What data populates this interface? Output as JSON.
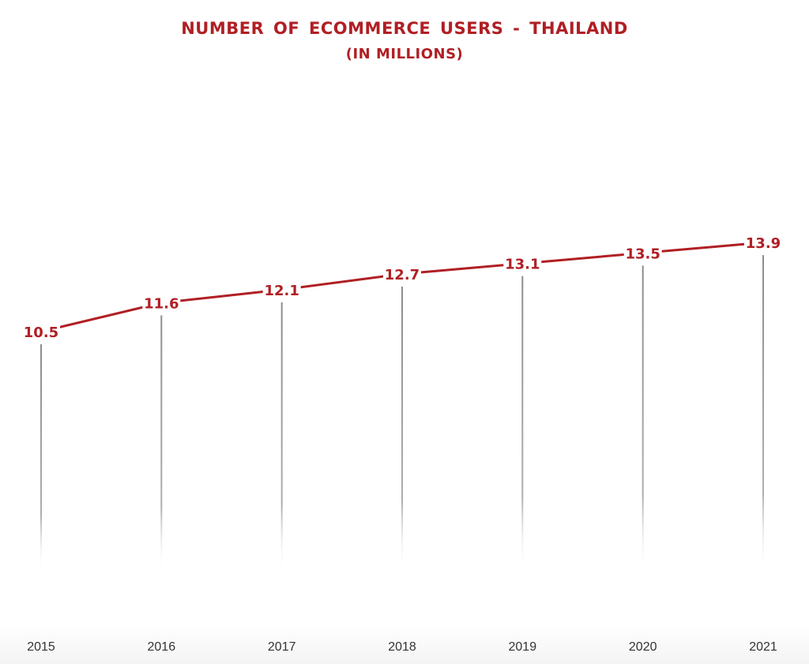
{
  "chart_data": {
    "type": "line",
    "title": "NUMBER  OF ECOMMERCE  USERS - THAILAND",
    "subtitle": "(IN MILLIONS)",
    "categories": [
      "2015",
      "2016",
      "2017",
      "2018",
      "2019",
      "2020",
      "2021"
    ],
    "values": [
      10.5,
      11.6,
      12.1,
      12.7,
      13.1,
      13.5,
      13.9
    ],
    "value_labels": [
      "10.5",
      "11.6",
      "12.1",
      "12.7",
      "13.1",
      "13.5",
      "13.9"
    ],
    "xlabel": "",
    "ylabel": "",
    "grid": false,
    "legend": "none",
    "colors": {
      "line": "#b01f24",
      "labels": "#b01f24",
      "drop_lines": "#8c8c8c",
      "tick_labels": "#333333"
    }
  }
}
